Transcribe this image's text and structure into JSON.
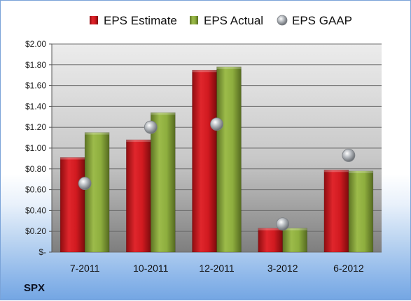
{
  "chart_data": {
    "type": "bar",
    "ticker": "SPX",
    "categories": [
      "7-2011",
      "10-2011",
      "12-2011",
      "3-2012",
      "6-2012"
    ],
    "series": [
      {
        "name": "EPS Estimate",
        "kind": "bar",
        "color": "#c0141a",
        "values": [
          0.91,
          1.08,
          1.75,
          0.23,
          0.79
        ]
      },
      {
        "name": "EPS Actual",
        "kind": "bar",
        "color": "#7c9a32",
        "values": [
          1.15,
          1.34,
          1.78,
          0.23,
          0.78
        ]
      },
      {
        "name": "EPS GAAP",
        "kind": "marker",
        "color": "#9aa0a6",
        "values": [
          0.66,
          1.2,
          1.23,
          0.27,
          0.93
        ]
      }
    ],
    "ylim": [
      0,
      2.0
    ],
    "yticks": [
      0,
      0.2,
      0.4,
      0.6,
      0.8,
      1.0,
      1.2,
      1.4,
      1.6,
      1.8,
      2.0
    ],
    "ytick_labels": [
      "$-",
      "$0.20",
      "$0.40",
      "$0.60",
      "$0.80",
      "$1.00",
      "$1.20",
      "$1.40",
      "$1.60",
      "$1.80",
      "$2.00"
    ],
    "grid": true,
    "legend": "top"
  }
}
